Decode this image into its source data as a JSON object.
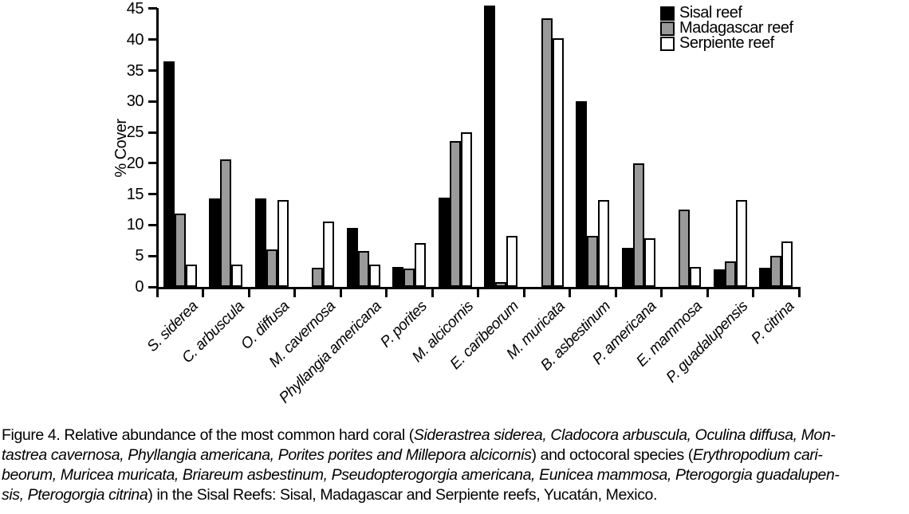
{
  "colors": {
    "axis": "#000000",
    "sisal": "#000000",
    "madagascar": "#9a9a9a",
    "serpiente": "#ffffff"
  },
  "chart_data": {
    "type": "bar",
    "title": "",
    "xlabel": "",
    "ylabel": "% Cover",
    "ylim": [
      0,
      45
    ],
    "ytick_step": 5,
    "grid": false,
    "legend_position": "top-right",
    "categories": [
      "S. siderea",
      "C. arbuscula",
      "O. diffusa",
      "M. cavernosa",
      "Phyllangia americana",
      "P. porites",
      "M. alcicornis",
      "E. caribeorum",
      "M. muricata",
      "B. asbestinum",
      "P. americana",
      "E. mammosa",
      "P. guadalupensis",
      "P. citrina"
    ],
    "series": [
      {
        "name": "Sisal reef",
        "color": "#000000",
        "values": [
          36.5,
          14.3,
          14.3,
          0,
          9.5,
          3.2,
          14.4,
          45.5,
          0,
          30,
          6.3,
          0,
          2.9,
          3.1
        ]
      },
      {
        "name": "Madagascar reef",
        "color": "#9a9a9a",
        "values": [
          11.8,
          20.6,
          6.0,
          3.1,
          5.8,
          3.0,
          23.6,
          0.8,
          43.5,
          8.3,
          20.0,
          12.5,
          4.1,
          5.0
        ]
      },
      {
        "name": "Serpiente reef",
        "color": "#ffffff",
        "values": [
          3.6,
          3.6,
          14.1,
          10.6,
          3.6,
          7.1,
          25.0,
          8.2,
          40.2,
          14.0,
          7.9,
          3.2,
          14.0,
          7.4
        ]
      }
    ]
  },
  "caption": {
    "lines": [
      [
        {
          "text": "Figure 4. Relative abundance of the most common hard coral (",
          "italic": false
        },
        {
          "text": "Siderastrea siderea, Cladocora arbuscula, Oculina diffusa, Mon-",
          "italic": true
        }
      ],
      [
        {
          "text": "tastrea cavernosa, Phyllangia americana, Porites porites and Millepora alcicornis",
          "italic": true
        },
        {
          "text": ") and octocoral species (",
          "italic": false
        },
        {
          "text": "Erythropodium cari-",
          "italic": true
        }
      ],
      [
        {
          "text": "beorum, Muricea muricata, Briareum asbestinum, Pseudopterogorgia americana, Eunicea mammosa, Pterogorgia guadalupen-",
          "italic": true
        }
      ],
      [
        {
          "text": "sis, Pterogorgia citrina",
          "italic": true
        },
        {
          "text": ") in the Sisal Reefs: Sisal, Madagascar and Serpiente reefs, Yucatán, Mexico.",
          "italic": false
        }
      ]
    ]
  }
}
